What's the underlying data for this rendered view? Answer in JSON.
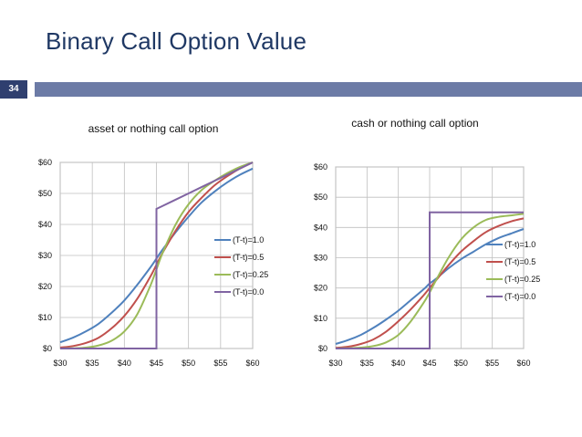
{
  "slide": {
    "title": "Binary Call Option Value",
    "page_number": "34",
    "accent_color": "#6c7ba6",
    "badge_color": "#2f3f6f",
    "title_color": "#1f3864"
  },
  "chart_data": [
    {
      "type": "line",
      "title": "asset or nothing call option",
      "xlabel": "",
      "ylabel": "",
      "xlim": [
        30,
        60
      ],
      "ylim": [
        0,
        60
      ],
      "x_ticks": [
        30,
        35,
        40,
        45,
        50,
        55,
        60
      ],
      "y_ticks": [
        0,
        10,
        20,
        30,
        40,
        50,
        60
      ],
      "x_tick_labels": [
        "$30",
        "$35",
        "$40",
        "$45",
        "$50",
        "$55",
        "$60"
      ],
      "y_tick_labels": [
        "$0",
        "$10",
        "$20",
        "$30",
        "$40",
        "$50",
        "$60"
      ],
      "grid": true,
      "legend": "right",
      "x": [
        30,
        32,
        34,
        36,
        38,
        40,
        42,
        44,
        45,
        46,
        48,
        50,
        52,
        54,
        56,
        58,
        60
      ],
      "series": [
        {
          "name": "(T-t)=1.0",
          "color": "#4f81bd",
          "values": [
            2,
            3.5,
            5.5,
            8,
            11.5,
            15.5,
            20.5,
            26,
            29,
            32,
            37.5,
            42.5,
            47,
            50.5,
            53.5,
            56,
            58
          ]
        },
        {
          "name": "(T-t)=0.5",
          "color": "#c0504d",
          "values": [
            0.3,
            0.8,
            1.8,
            3.5,
            6.5,
            10.5,
            16,
            23,
            27,
            31,
            38,
            44,
            48.5,
            52.5,
            55.5,
            58,
            60
          ]
        },
        {
          "name": "(T-t)=0.25",
          "color": "#9bbb59",
          "values": [
            0,
            0.1,
            0.3,
            1,
            2.5,
            5.5,
            11,
            20,
            25.5,
            31,
            40,
            46.5,
            51,
            54,
            56.5,
            58.5,
            60
          ]
        },
        {
          "name": "(T-t)=0.0",
          "color": "#8064a2",
          "values": [
            0,
            0,
            0,
            0,
            0,
            0,
            0,
            0,
            45,
            46,
            48,
            50,
            52,
            54,
            56,
            58,
            60
          ],
          "step_at": 45
        }
      ]
    },
    {
      "type": "line",
      "title": "cash or nothing call option",
      "xlabel": "",
      "ylabel": "",
      "xlim": [
        30,
        60
      ],
      "ylim": [
        0,
        60
      ],
      "x_ticks": [
        30,
        35,
        40,
        45,
        50,
        55,
        60
      ],
      "y_ticks": [
        0,
        10,
        20,
        30,
        40,
        50,
        60
      ],
      "x_tick_labels": [
        "$30",
        "$35",
        "$40",
        "$45",
        "$50",
        "$55",
        "$60"
      ],
      "y_tick_labels": [
        "$0",
        "$10",
        "$20",
        "$30",
        "$40",
        "$50",
        "$60"
      ],
      "grid": true,
      "legend": "right",
      "x": [
        30,
        32,
        34,
        36,
        38,
        40,
        42,
        44,
        45,
        46,
        48,
        50,
        52,
        54,
        56,
        58,
        60
      ],
      "series": [
        {
          "name": "(T-t)=1.0",
          "color": "#4f81bd",
          "values": [
            1.5,
            2.8,
            4.5,
            6.8,
            9.5,
            12.5,
            16,
            19.5,
            21.5,
            23,
            26.5,
            29.5,
            32,
            34.5,
            36.5,
            38,
            39.5
          ]
        },
        {
          "name": "(T-t)=0.5",
          "color": "#c0504d",
          "values": [
            0.2,
            0.6,
            1.5,
            3,
            5.5,
            9,
            13,
            17.5,
            20,
            22.5,
            27.5,
            32,
            35.5,
            38.5,
            40.5,
            42,
            43
          ]
        },
        {
          "name": "(T-t)=0.25",
          "color": "#9bbb59",
          "values": [
            0,
            0.1,
            0.3,
            0.8,
            2,
            4.5,
            9,
            15,
            18.5,
            22.5,
            30,
            36,
            40,
            42.5,
            43.5,
            44,
            44.5
          ]
        },
        {
          "name": "(T-t)=0.0",
          "color": "#8064a2",
          "values": [
            0,
            0,
            0,
            0,
            0,
            0,
            0,
            0,
            45,
            45,
            45,
            45,
            45,
            45,
            45,
            45,
            45
          ],
          "step_at": 45
        }
      ]
    }
  ]
}
